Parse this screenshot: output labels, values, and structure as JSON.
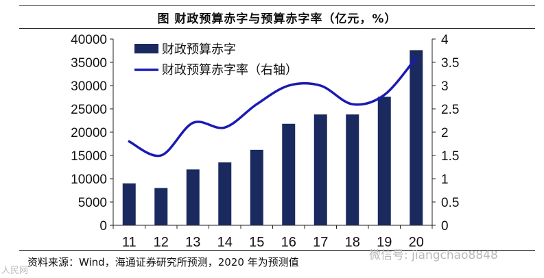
{
  "title": "图  财政预算赤字与预算赤字率（亿元，%）",
  "source": "资料来源：Wind，海通证券研究所预测，2020 年为预测值",
  "watermark_right": "微信号: jiangchao8848",
  "watermark_left": "人民网",
  "colors": {
    "bar": "#1a2a5e",
    "line": "#1a1ab4",
    "axis": "#222222"
  },
  "chart_data": {
    "type": "bar",
    "categories": [
      "11",
      "12",
      "13",
      "14",
      "15",
      "16",
      "17",
      "18",
      "19",
      "20"
    ],
    "series": [
      {
        "name": "财政预算赤字",
        "type": "bar",
        "axis": "left",
        "values": [
          9000,
          8000,
          12000,
          13500,
          16200,
          21800,
          23800,
          23800,
          27600,
          37600
        ]
      },
      {
        "name": "财政预算赤字率（右轴）",
        "type": "line",
        "axis": "right",
        "values": [
          1.8,
          1.5,
          2.2,
          2.1,
          2.6,
          3.0,
          3.0,
          2.6,
          2.8,
          3.6
        ]
      }
    ],
    "ylim_left": [
      0,
      40000
    ],
    "yticks_left": [
      "0",
      "5000",
      "10000",
      "15000",
      "20000",
      "25000",
      "30000",
      "35000",
      "40000"
    ],
    "ylim_right": [
      0,
      4
    ],
    "yticks_right": [
      "0",
      "0.5",
      "1",
      "1.5",
      "2",
      "2.5",
      "3",
      "3.5",
      "4"
    ],
    "legend_position": "top-left",
    "grid": false
  }
}
